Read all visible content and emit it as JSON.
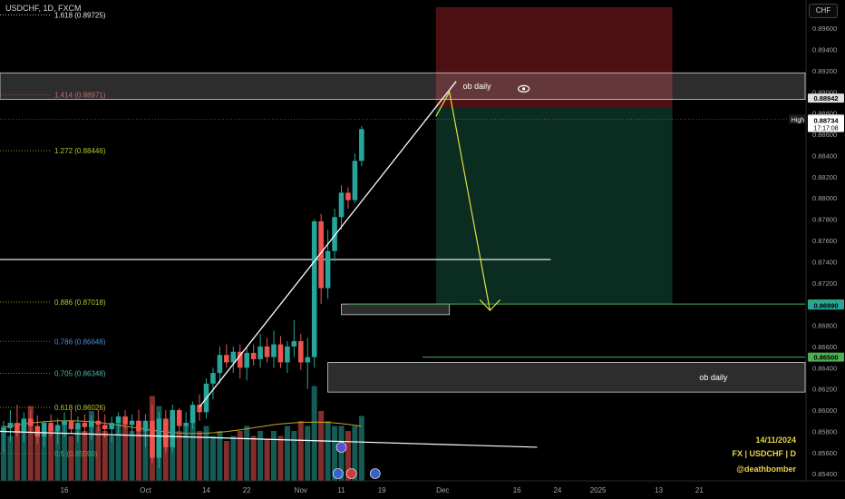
{
  "header": {
    "symbol": "USDCHF, 1D, FXCM",
    "currency": "CHF"
  },
  "signature": {
    "date": "14/11/2024",
    "market": "FX | USDCHF | D",
    "author": "@deathbomber"
  },
  "colors": {
    "up": "#26a69a",
    "down": "#ef5350",
    "fib_red": "#d0545a",
    "fib_yellow": "#b5c62a",
    "fib_blue": "#4a90d8",
    "fib_teal": "#4db6ac",
    "ma": "#c9a227",
    "green_line": "#4caf50",
    "arrow": "#e0e042"
  },
  "chart_data": {
    "type": "candlestick",
    "symbol": "USDCHF",
    "timeframe": "1D",
    "ylim": [
      0.8535,
      0.8985
    ],
    "y_ticks": [
      0.854,
      0.856,
      0.858,
      0.86,
      0.862,
      0.864,
      0.866,
      0.868,
      0.87,
      0.872,
      0.874,
      0.876,
      0.878,
      0.88,
      0.882,
      0.884,
      0.886,
      0.888,
      0.89,
      0.892,
      0.894,
      0.896,
      0.898
    ],
    "y_tick_labels": [
      "0.85400",
      "0.85600",
      "0.85800",
      "0.86000",
      "0.86200",
      "0.86400",
      "0.86600",
      "0.86800",
      "0.87000",
      "0.87200",
      "0.87400",
      "0.87600",
      "0.87800",
      "0.88000",
      "0.88200",
      "0.88400",
      "0.88600",
      "0.88800",
      "0.89000",
      "0.89200",
      "0.89400",
      "0.89600",
      "0.89800"
    ],
    "x_labels": [
      {
        "label": "Sep",
        "bar": -2
      },
      {
        "label": "16",
        "bar": 9
      },
      {
        "label": "Oct",
        "bar": 21
      },
      {
        "label": "14",
        "bar": 30
      },
      {
        "label": "22",
        "bar": 36
      },
      {
        "label": "Nov",
        "bar": 44
      },
      {
        "label": "11",
        "bar": 50
      },
      {
        "label": "19",
        "bar": 56
      },
      {
        "label": "Dec",
        "bar": 65
      },
      {
        "label": "16",
        "bar": 76
      },
      {
        "label": "24",
        "bar": 82
      },
      {
        "label": "2025",
        "bar": 88
      },
      {
        "label": "13",
        "bar": 97
      },
      {
        "label": "21",
        "bar": 103
      }
    ],
    "candles": [
      {
        "o": 0.858,
        "h": 0.859,
        "l": 0.856,
        "c": 0.8583
      },
      {
        "o": 0.8583,
        "h": 0.86,
        "l": 0.857,
        "c": 0.8588
      },
      {
        "o": 0.8588,
        "h": 0.8605,
        "l": 0.8575,
        "c": 0.858
      },
      {
        "o": 0.858,
        "h": 0.8598,
        "l": 0.857,
        "c": 0.8592
      },
      {
        "o": 0.8592,
        "h": 0.86,
        "l": 0.8578,
        "c": 0.8585
      },
      {
        "o": 0.8585,
        "h": 0.8595,
        "l": 0.8568,
        "c": 0.8575
      },
      {
        "o": 0.8575,
        "h": 0.859,
        "l": 0.8565,
        "c": 0.8588
      },
      {
        "o": 0.8588,
        "h": 0.8596,
        "l": 0.8575,
        "c": 0.858
      },
      {
        "o": 0.858,
        "h": 0.8592,
        "l": 0.8568,
        "c": 0.8586
      },
      {
        "o": 0.8586,
        "h": 0.8598,
        "l": 0.8575,
        "c": 0.859
      },
      {
        "o": 0.859,
        "h": 0.86,
        "l": 0.8578,
        "c": 0.8582
      },
      {
        "o": 0.8582,
        "h": 0.8594,
        "l": 0.857,
        "c": 0.8588
      },
      {
        "o": 0.8588,
        "h": 0.8596,
        "l": 0.8576,
        "c": 0.8584
      },
      {
        "o": 0.8584,
        "h": 0.8595,
        "l": 0.8572,
        "c": 0.859
      },
      {
        "o": 0.859,
        "h": 0.86,
        "l": 0.858,
        "c": 0.8586
      },
      {
        "o": 0.8586,
        "h": 0.8596,
        "l": 0.8574,
        "c": 0.8582
      },
      {
        "o": 0.8582,
        "h": 0.8594,
        "l": 0.857,
        "c": 0.8588
      },
      {
        "o": 0.8588,
        "h": 0.8598,
        "l": 0.8578,
        "c": 0.8594
      },
      {
        "o": 0.8594,
        "h": 0.86,
        "l": 0.8582,
        "c": 0.8586
      },
      {
        "o": 0.8586,
        "h": 0.8596,
        "l": 0.8576,
        "c": 0.859
      },
      {
        "o": 0.859,
        "h": 0.86,
        "l": 0.8575,
        "c": 0.858
      },
      {
        "o": 0.858,
        "h": 0.8596,
        "l": 0.8565,
        "c": 0.859
      },
      {
        "o": 0.859,
        "h": 0.8605,
        "l": 0.855,
        "c": 0.8555
      },
      {
        "o": 0.8555,
        "h": 0.8598,
        "l": 0.8545,
        "c": 0.8592
      },
      {
        "o": 0.8592,
        "h": 0.86,
        "l": 0.856,
        "c": 0.8565
      },
      {
        "o": 0.8565,
        "h": 0.8605,
        "l": 0.856,
        "c": 0.86
      },
      {
        "o": 0.86,
        "h": 0.8602,
        "l": 0.858,
        "c": 0.8585
      },
      {
        "o": 0.8585,
        "h": 0.8598,
        "l": 0.8575,
        "c": 0.8588
      },
      {
        "o": 0.8588,
        "h": 0.8608,
        "l": 0.8582,
        "c": 0.8605
      },
      {
        "o": 0.8605,
        "h": 0.8615,
        "l": 0.859,
        "c": 0.8598
      },
      {
        "o": 0.8598,
        "h": 0.863,
        "l": 0.8592,
        "c": 0.8625
      },
      {
        "o": 0.8625,
        "h": 0.864,
        "l": 0.861,
        "c": 0.8635
      },
      {
        "o": 0.8635,
        "h": 0.866,
        "l": 0.8625,
        "c": 0.8652
      },
      {
        "o": 0.8652,
        "h": 0.8662,
        "l": 0.864,
        "c": 0.8645
      },
      {
        "o": 0.8645,
        "h": 0.866,
        "l": 0.8635,
        "c": 0.8655
      },
      {
        "o": 0.8655,
        "h": 0.8662,
        "l": 0.863,
        "c": 0.864
      },
      {
        "o": 0.864,
        "h": 0.866,
        "l": 0.8628,
        "c": 0.8654
      },
      {
        "o": 0.8654,
        "h": 0.8662,
        "l": 0.8642,
        "c": 0.8648
      },
      {
        "o": 0.8648,
        "h": 0.8672,
        "l": 0.864,
        "c": 0.866
      },
      {
        "o": 0.866,
        "h": 0.8668,
        "l": 0.8645,
        "c": 0.865
      },
      {
        "o": 0.865,
        "h": 0.8675,
        "l": 0.864,
        "c": 0.8662
      },
      {
        "o": 0.8662,
        "h": 0.867,
        "l": 0.864,
        "c": 0.8645
      },
      {
        "o": 0.8645,
        "h": 0.8665,
        "l": 0.8635,
        "c": 0.866
      },
      {
        "o": 0.866,
        "h": 0.8685,
        "l": 0.865,
        "c": 0.8665
      },
      {
        "o": 0.8665,
        "h": 0.8672,
        "l": 0.8638,
        "c": 0.8645
      },
      {
        "o": 0.8645,
        "h": 0.8668,
        "l": 0.862,
        "c": 0.865
      },
      {
        "o": 0.865,
        "h": 0.878,
        "l": 0.864,
        "c": 0.8778
      },
      {
        "o": 0.8778,
        "h": 0.8785,
        "l": 0.87,
        "c": 0.8715
      },
      {
        "o": 0.8715,
        "h": 0.877,
        "l": 0.8705,
        "c": 0.875
      },
      {
        "o": 0.875,
        "h": 0.879,
        "l": 0.874,
        "c": 0.8782
      },
      {
        "o": 0.8782,
        "h": 0.8812,
        "l": 0.877,
        "c": 0.8805
      },
      {
        "o": 0.8805,
        "h": 0.881,
        "l": 0.879,
        "c": 0.8798
      },
      {
        "o": 0.8798,
        "h": 0.8842,
        "l": 0.8795,
        "c": 0.8835
      },
      {
        "o": 0.8835,
        "h": 0.8868,
        "l": 0.883,
        "c": 0.8865
      }
    ],
    "volume": [
      0.55,
      0.45,
      0.5,
      0.6,
      0.75,
      0.5,
      0.45,
      0.55,
      0.5,
      0.6,
      0.45,
      0.55,
      0.5,
      0.7,
      0.55,
      0.5,
      0.45,
      0.6,
      0.55,
      0.5,
      0.6,
      0.55,
      0.85,
      0.75,
      0.6,
      0.65,
      0.5,
      0.55,
      0.6,
      0.5,
      0.55,
      0.45,
      0.5,
      0.4,
      0.45,
      0.5,
      0.55,
      0.45,
      0.5,
      0.42,
      0.5,
      0.45,
      0.55,
      0.5,
      0.6,
      0.55,
      0.95,
      0.7,
      0.6,
      0.55,
      0.55,
      0.5,
      0.55,
      0.65
    ],
    "fib_levels": [
      {
        "ratio": "1.618",
        "label": "1.618 (0.89725)",
        "price": 0.89725,
        "color": "#e8e8e8"
      },
      {
        "ratio": "1.414",
        "label": "1.414 (0.88971)",
        "price": 0.88971,
        "color": "#d0545a"
      },
      {
        "ratio": "1.272",
        "label": "1.272 (0.88446)",
        "price": 0.88446,
        "color": "#b5c62a"
      },
      {
        "ratio": "0.886",
        "label": "0.886 (0.87018)",
        "price": 0.87018,
        "color": "#b5c62a"
      },
      {
        "ratio": "0.786",
        "label": "0.786 (0.86648)",
        "price": 0.86648,
        "color": "#4a90d8"
      },
      {
        "ratio": "0.705",
        "label": "0.705 (0.86348)",
        "price": 0.86348,
        "color": "#4db6ac"
      },
      {
        "ratio": "0.618",
        "label": "0.618 (0.86026)",
        "price": 0.86026,
        "color": "#b5c62a"
      },
      {
        "ratio": "0.5",
        "label": "0.5 (0.85590)",
        "price": 0.8559,
        "color": "#4caf50"
      }
    ],
    "zones": [
      {
        "name": "ob daily",
        "top": 0.8918,
        "bottom": 0.8893,
        "label": "ob daily",
        "x0bar": -1,
        "x1bar": 120
      },
      {
        "name": "ob daily",
        "top": 0.8645,
        "bottom": 0.8617,
        "label": "ob daily",
        "x0bar": 48,
        "x1bar": 120
      },
      {
        "name": "zone",
        "top": 0.87,
        "bottom": 0.869,
        "label": "",
        "x0bar": 50,
        "x1bar": 66
      }
    ],
    "position": {
      "entry": 0.8885,
      "stop": 0.898,
      "target": 0.87
    },
    "price_labels": [
      {
        "text": "0.88942",
        "price": 0.88942,
        "bg": "#e0e0e0",
        "fg": "#000"
      },
      {
        "text": "0.88744",
        "price": 0.88744,
        "bg": "#e0e0e0",
        "fg": "#000",
        "tag": "High"
      },
      {
        "text": "0.88734",
        "price": 0.88734,
        "bg": "#ffffff",
        "fg": "#000",
        "sub": "17:17:08"
      },
      {
        "text": "0.87000",
        "price": 0.87,
        "bg": "#4caf50",
        "fg": "#000"
      },
      {
        "text": "0.86990",
        "price": 0.8699,
        "bg": "#26a69a",
        "fg": "#000"
      },
      {
        "text": "0.86500",
        "price": 0.865,
        "bg": "#4caf50",
        "fg": "#000"
      }
    ]
  }
}
